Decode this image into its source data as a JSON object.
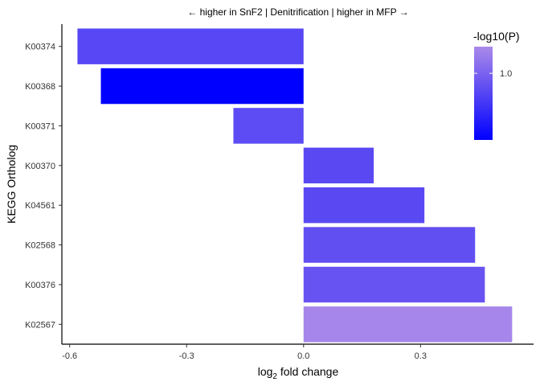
{
  "chart_data": {
    "type": "bar",
    "orientation": "horizontal",
    "title": "← higher in SnF2 | Denitrification | higher in MFP →",
    "xlabel_main": "log",
    "xlabel_sub": "2",
    "xlabel_rest": " fold change",
    "ylabel": "KEGG Ortholog",
    "xlim": [
      -0.62,
      0.59
    ],
    "xticks": [
      -0.6,
      -0.3,
      0.0,
      0.3
    ],
    "xtick_labels": [
      "-0.6",
      "-0.3",
      "0.0",
      "0.3"
    ],
    "categories": [
      "K00374",
      "K00368",
      "K00371",
      "K00370",
      "K04561",
      "K02568",
      "K00376",
      "K02567"
    ],
    "values": [
      -0.58,
      -0.52,
      -0.18,
      0.18,
      0.31,
      0.44,
      0.465,
      0.535
    ],
    "neglog10p": [
      0.86,
      0.5,
      0.88,
      0.87,
      0.87,
      0.9,
      0.92,
      1.18
    ],
    "legend": {
      "title": "-log10(P)",
      "range": [
        0.5,
        1.2
      ],
      "ticks": [
        1.0
      ],
      "tick_labels": [
        "1.0"
      ],
      "low_color": "#0000ff",
      "high_color": "#ab8ae9"
    },
    "grid": false
  }
}
